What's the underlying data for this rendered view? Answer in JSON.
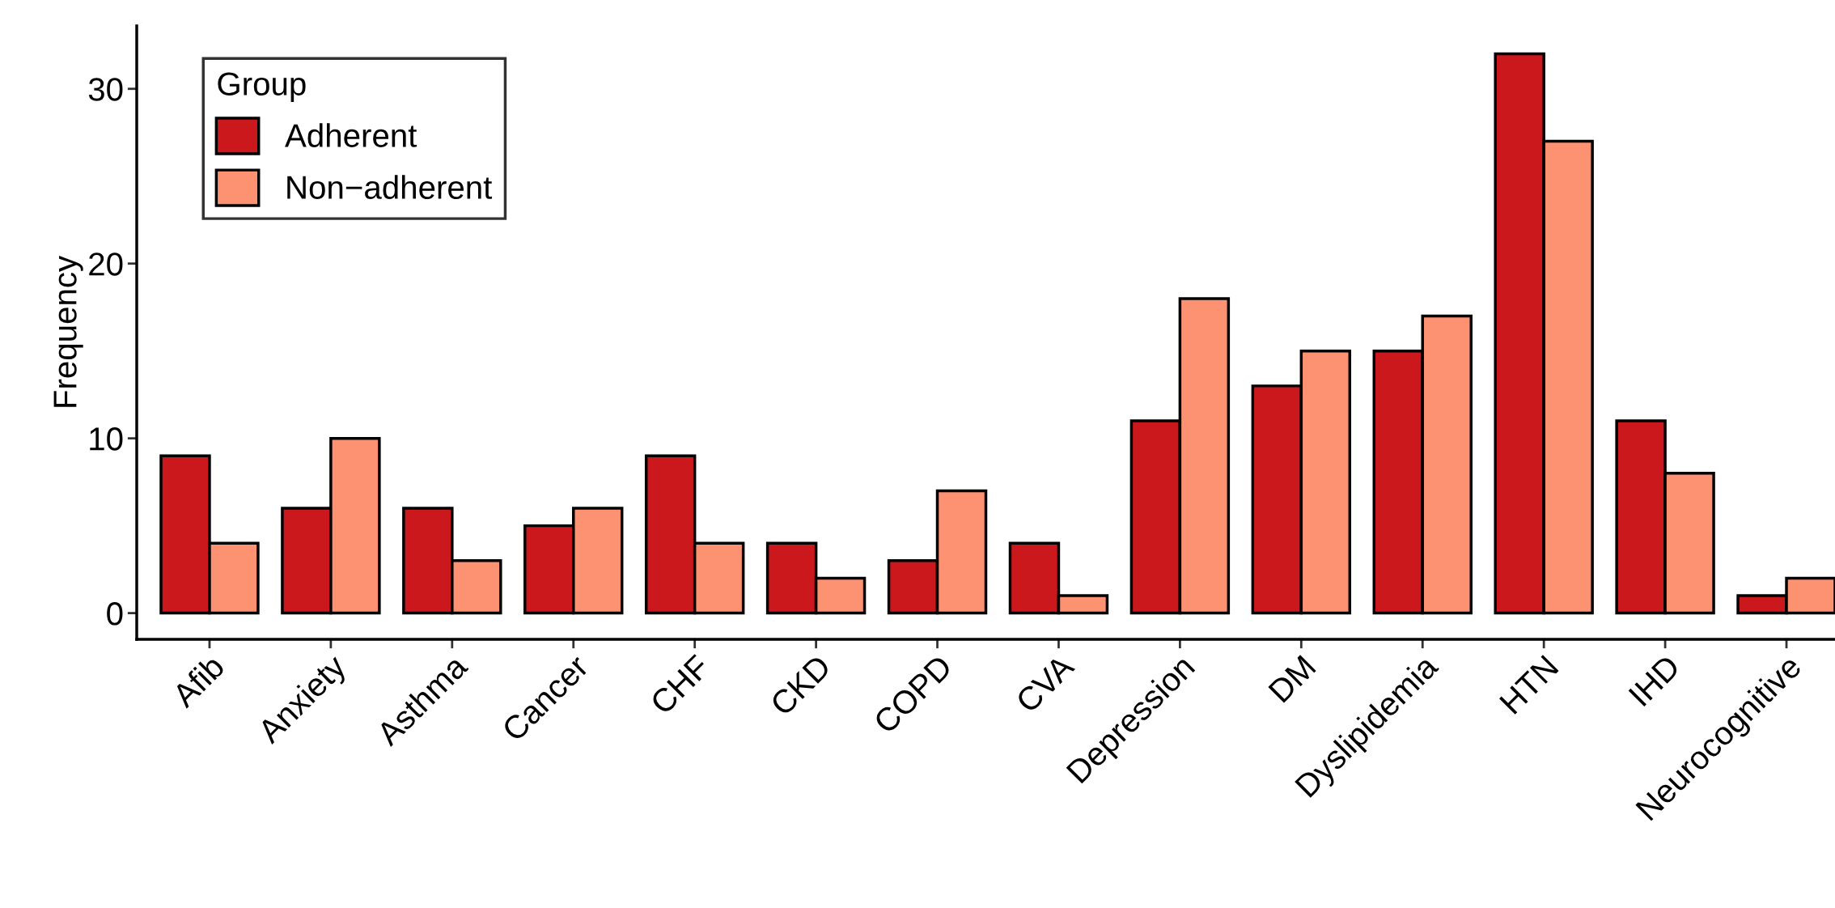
{
  "chart_data": {
    "type": "bar",
    "ylabel": "Frequency",
    "legend_title": "Group",
    "legend": "top left",
    "grid": false,
    "categories": [
      "Afib",
      "Anxiety",
      "Asthma",
      "Cancer",
      "CHF",
      "CKD",
      "COPD",
      "CVA",
      "Depression",
      "DM",
      "Dyslipidemia",
      "HTN",
      "IHD",
      "Neurocognitive"
    ],
    "series": [
      {
        "name": "Adherent",
        "color": "#cb181d",
        "values": [
          9,
          6,
          6,
          5,
          9,
          4,
          3,
          4,
          11,
          13,
          15,
          32,
          11,
          1
        ]
      },
      {
        "name": "Non−adherent",
        "color": "#fc9272",
        "values": [
          4,
          10,
          3,
          6,
          4,
          2,
          7,
          1,
          18,
          15,
          17,
          27,
          8,
          2
        ]
      }
    ],
    "ylim": [
      -1.5,
      33.6
    ],
    "yticks": [
      0,
      10,
      20,
      30
    ]
  }
}
